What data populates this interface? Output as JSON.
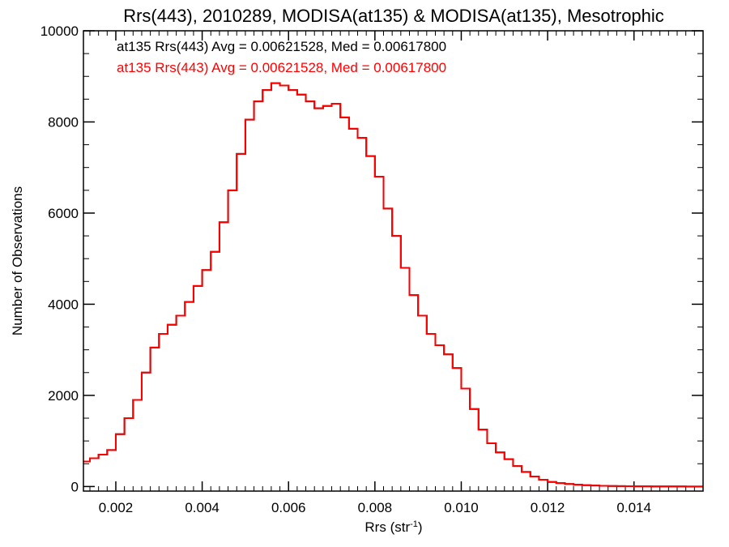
{
  "chart_data": {
    "type": "line",
    "title": "Rrs(443), 2010289, MODISA(at135) & MODISA(at135), Mesotrophic",
    "xlabel": "Rrs (str",
    "xlabel_sup": "-1",
    "xlabel_close": ")",
    "ylabel": "Number of Observations",
    "xlim": [
      0.00125,
      0.0156
    ],
    "ylim": [
      -100,
      10000
    ],
    "x_ticks": [
      0.002,
      0.004,
      0.006,
      0.008,
      0.01,
      0.012,
      0.014
    ],
    "x_tick_labels": [
      "0.002",
      "0.004",
      "0.006",
      "0.008",
      "0.010",
      "0.012",
      "0.014"
    ],
    "y_ticks": [
      0,
      2000,
      4000,
      6000,
      8000,
      10000
    ],
    "y_tick_labels": [
      "0",
      "2000",
      "4000",
      "6000",
      "8000",
      "10000"
    ],
    "grid": false,
    "legend_position": "top-left",
    "series": [
      {
        "name": "at135 Rrs(443) Avg = 0.00621528, Med = 0.00617800",
        "color": "#000000",
        "x": [
          0.00125,
          0.0014,
          0.0016,
          0.0018,
          0.002,
          0.0022,
          0.0024,
          0.0026,
          0.0028,
          0.003,
          0.0032,
          0.0034,
          0.0036,
          0.0038,
          0.004,
          0.0042,
          0.0044,
          0.0046,
          0.0048,
          0.005,
          0.0052,
          0.0054,
          0.0056,
          0.0058,
          0.006,
          0.0062,
          0.0064,
          0.0066,
          0.0068,
          0.007,
          0.0072,
          0.0074,
          0.0076,
          0.0078,
          0.008,
          0.0082,
          0.0084,
          0.0086,
          0.0088,
          0.009,
          0.0092,
          0.0094,
          0.0096,
          0.0098,
          0.01,
          0.0102,
          0.0104,
          0.0106,
          0.0108,
          0.011,
          0.0112,
          0.0114,
          0.0116,
          0.0118,
          0.012,
          0.0122,
          0.0124,
          0.0126,
          0.0128,
          0.013,
          0.0132,
          0.0134,
          0.0136,
          0.0138,
          0.014,
          0.0142,
          0.0144,
          0.0146,
          0.0148,
          0.015,
          0.0152,
          0.0154,
          0.0156
        ],
        "values": [
          550,
          620,
          700,
          800,
          1150,
          1500,
          1900,
          2500,
          3050,
          3350,
          3550,
          3750,
          4050,
          4400,
          4750,
          5150,
          5800,
          6500,
          7300,
          8050,
          8450,
          8700,
          8850,
          8800,
          8700,
          8600,
          8450,
          8300,
          8350,
          8400,
          8100,
          7850,
          7650,
          7250,
          6800,
          6100,
          5500,
          4800,
          4200,
          3750,
          3350,
          3100,
          2900,
          2600,
          2150,
          1700,
          1250,
          950,
          750,
          600,
          450,
          320,
          220,
          150,
          100,
          75,
          55,
          40,
          30,
          22,
          16,
          12,
          9,
          7,
          5,
          4,
          3,
          3,
          2,
          2,
          1,
          1,
          1
        ]
      },
      {
        "name": "at135 Rrs(443) Avg = 0.00621528, Med = 0.00617800",
        "color": "#ff0000",
        "x": [
          0.00125,
          0.0014,
          0.0016,
          0.0018,
          0.002,
          0.0022,
          0.0024,
          0.0026,
          0.0028,
          0.003,
          0.0032,
          0.0034,
          0.0036,
          0.0038,
          0.004,
          0.0042,
          0.0044,
          0.0046,
          0.0048,
          0.005,
          0.0052,
          0.0054,
          0.0056,
          0.0058,
          0.006,
          0.0062,
          0.0064,
          0.0066,
          0.0068,
          0.007,
          0.0072,
          0.0074,
          0.0076,
          0.0078,
          0.008,
          0.0082,
          0.0084,
          0.0086,
          0.0088,
          0.009,
          0.0092,
          0.0094,
          0.0096,
          0.0098,
          0.01,
          0.0102,
          0.0104,
          0.0106,
          0.0108,
          0.011,
          0.0112,
          0.0114,
          0.0116,
          0.0118,
          0.012,
          0.0122,
          0.0124,
          0.0126,
          0.0128,
          0.013,
          0.0132,
          0.0134,
          0.0136,
          0.0138,
          0.014,
          0.0142,
          0.0144,
          0.0146,
          0.0148,
          0.015,
          0.0152,
          0.0154,
          0.0156
        ],
        "values": [
          550,
          620,
          700,
          800,
          1150,
          1500,
          1900,
          2500,
          3050,
          3350,
          3550,
          3750,
          4050,
          4400,
          4750,
          5150,
          5800,
          6500,
          7300,
          8050,
          8450,
          8700,
          8850,
          8800,
          8700,
          8600,
          8450,
          8300,
          8350,
          8400,
          8100,
          7850,
          7650,
          7250,
          6800,
          6100,
          5500,
          4800,
          4200,
          3750,
          3350,
          3100,
          2900,
          2600,
          2150,
          1700,
          1250,
          950,
          750,
          600,
          450,
          320,
          220,
          150,
          100,
          75,
          55,
          40,
          30,
          22,
          16,
          12,
          9,
          7,
          5,
          4,
          3,
          3,
          2,
          2,
          1,
          1,
          1
        ]
      }
    ]
  }
}
